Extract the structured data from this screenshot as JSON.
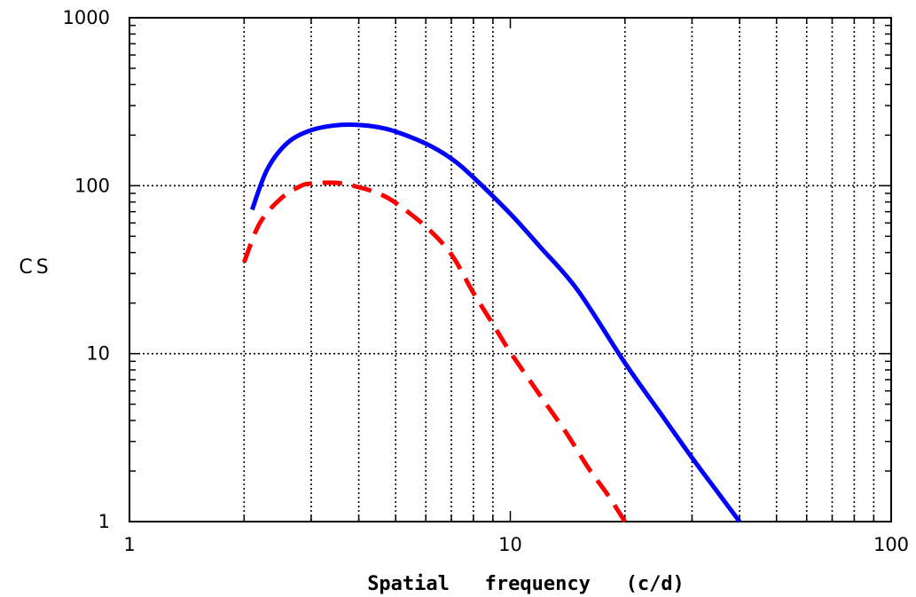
{
  "chart_data": {
    "type": "line",
    "title": "",
    "xlabel": "Spatial   frequency   (c/d)",
    "ylabel": "CS",
    "x_scale": "log",
    "y_scale": "log",
    "xlim": [
      1,
      100
    ],
    "ylim": [
      1,
      1000
    ],
    "grid": true,
    "x_ticks": [
      {
        "value": 1,
        "label": "1"
      },
      {
        "value": 10,
        "label": "10"
      },
      {
        "value": 100,
        "label": "100"
      }
    ],
    "y_ticks": [
      {
        "value": 1,
        "label": "1"
      },
      {
        "value": 10,
        "label": "10"
      },
      {
        "value": 100,
        "label": "100"
      },
      {
        "value": 1000,
        "label": "1000"
      }
    ],
    "series": [
      {
        "color": "#0000ff",
        "style": "solid",
        "x": [
          2.1,
          2.3,
          2.6,
          3.0,
          3.5,
          4.0,
          4.5,
          5.0,
          6.0,
          7.0,
          8.0,
          10.0,
          12.0,
          15.0,
          20.0,
          25.0,
          30.0,
          35.0,
          40.0
        ],
        "y": [
          72,
          125,
          180,
          214,
          229,
          230,
          223,
          210,
          178,
          145,
          112,
          68,
          43,
          24,
          8.8,
          4.3,
          2.4,
          1.5,
          1.0
        ]
      },
      {
        "color": "#ff0000",
        "style": "dashed",
        "x": [
          2.0,
          2.2,
          2.5,
          2.8,
          3.0,
          3.5,
          4.0,
          4.5,
          5.0,
          6.0,
          7.0,
          8.0,
          9.0,
          10.0,
          12.0,
          14.0,
          16.0,
          18.0,
          20.0
        ],
        "y": [
          35,
          60,
          84,
          99,
          103,
          104,
          98,
          90,
          79,
          57,
          39,
          23,
          15,
          10.2,
          5.6,
          3.4,
          2.1,
          1.45,
          1.0
        ]
      }
    ]
  }
}
